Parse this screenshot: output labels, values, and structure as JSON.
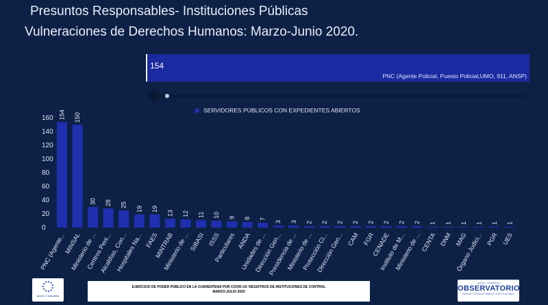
{
  "titles": {
    "line1": "Presuntos Responsables- Instituciones Públicas",
    "line2": "Vulneraciones de Derechos Humanos: Marzo-Junio 2020."
  },
  "tooltip": {
    "value": "154",
    "label": "PNC (Agente Policial, Puesto Policial,UMO, 911, ANSP)"
  },
  "colors": {
    "bar": "#1f2fb0",
    "background": "#0d2147",
    "tooltip_bar": "#1a2aa0"
  },
  "chart_data": {
    "type": "bar",
    "categories": [
      "PNC (Agente...",
      "MINSAL",
      "Ministerio de ...",
      "Centros Peni...",
      "Alcaldías, Con...",
      "Hospitales Na...",
      "FAES",
      "MINTRAB",
      "Ministerio de ...",
      "SIBASI",
      "ISSS",
      "Particulares",
      "ANDA",
      "Unidades de ...",
      "Dirección Gen...",
      "Presidencia de ...",
      "Ministerio de ...",
      "Protección Ci...",
      "Dirección Gen...",
      "CAM",
      "FGR",
      "CENADE",
      "Instituto de M...",
      "Ministerio de ...",
      "CENTA",
      "DNM",
      "MAG",
      "Órgano Judici...",
      "PGR",
      "UES"
    ],
    "series": [
      {
        "name": "SERVIDORES PÚBLICOS CON EXPEDIENTES ABIERTOS",
        "values": [
          154,
          150,
          30,
          28,
          25,
          19,
          19,
          13,
          12,
          11,
          10,
          9,
          8,
          7,
          3,
          3,
          2,
          2,
          2,
          2,
          2,
          2,
          2,
          2,
          1,
          1,
          1,
          1,
          1,
          1
        ]
      }
    ],
    "yticks": [
      0,
      20,
      40,
      60,
      80,
      100,
      120,
      140,
      160
    ],
    "ylim": [
      0,
      160
    ],
    "legend": "top-center",
    "grid": false
  },
  "footer": {
    "left_logo_text": "Acción Ciudadana",
    "banner_line1": "EJERCICIO DE PODER PÚBLICO EN LA CUARENTENA POR COVID-19: REGISTROS DE INSTITUCIONES DE CONTROL",
    "banner_line2": "MARZO-JULIO 2020",
    "right_logo_small": "Acción Ciudadana",
    "right_logo_big": "OBSERVATORIO",
    "right_logo_sub": "PARA EL FORTALECIMIENTO INSTITUCIONAL"
  }
}
